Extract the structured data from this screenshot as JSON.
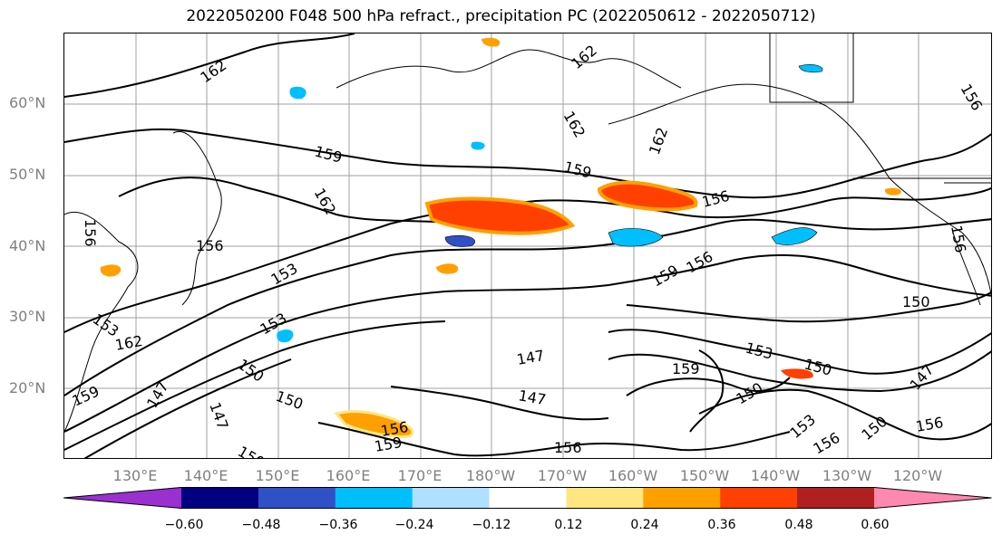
{
  "title": "2022050200 F048 500 hPa refract., precipitation PC (2022050612 - 2022050712)",
  "lat_labels": [
    "60°N",
    "50°N",
    "40°N",
    "30°N",
    "20°N"
  ],
  "lon_labels": [
    "130°E",
    "140°E",
    "150°E",
    "160°E",
    "170°E",
    "180°W",
    "170°W",
    "160°W",
    "150°W",
    "140°W",
    "130°W",
    "120°W"
  ],
  "colorbar": {
    "ticks": [
      "−0.60",
      "−0.48",
      "−0.36",
      "−0.24",
      "−0.12",
      "0.12",
      "0.24",
      "0.36",
      "0.48",
      "0.60"
    ],
    "colors": [
      "#9b30d0",
      "#000080",
      "#3050c8",
      "#00bfff",
      "#b0e0ff",
      "#ffffff",
      "#ffe680",
      "#ffa000",
      "#ff4000",
      "#b02020",
      "#ff88b0"
    ]
  },
  "contour_labels": [
    "162",
    "162",
    "162",
    "162",
    "159",
    "162",
    "159",
    "156",
    "156",
    "156",
    "156",
    "159",
    "156",
    "153",
    "153",
    "153",
    "150",
    "162",
    "150",
    "147",
    "147",
    "147",
    "150",
    "147",
    "159",
    "153",
    "150",
    "150",
    "147",
    "156",
    "150",
    "156",
    "159",
    "150",
    "153",
    "156",
    "156",
    "159",
    "156"
  ]
}
